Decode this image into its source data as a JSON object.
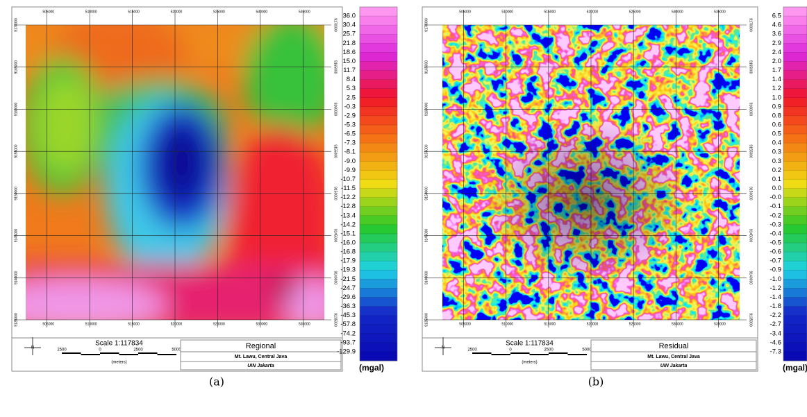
{
  "panels": [
    {
      "caption": "(a)",
      "title": "Regional",
      "location": "Mt. Lawu, Central Java",
      "organization": "UIN Jakarta",
      "scale": "Scale 1:117834",
      "scale_ticks": [
        "2500",
        "0",
        "2500",
        "5000"
      ],
      "scale_unit": "(meters)",
      "north": "N",
      "x_ticks": [
        "505000",
        "510000",
        "515000",
        "520000",
        "525000",
        "530000",
        "535000"
      ],
      "y_ticks": [
        "9170000",
        "9165000",
        "9160000",
        "9155000",
        "9150000",
        "9145000",
        "9140000",
        "9135000"
      ],
      "legend_labels": [
        "36.0",
        "30.4",
        "25.7",
        "21.8",
        "18.6",
        "15.0",
        "11.7",
        "8.4",
        "5.3",
        "2.5",
        "-0.3",
        "-2.9",
        "-5.3",
        "-6.5",
        "-7.3",
        "-8.1",
        "-9.0",
        "-9.9",
        "-10.7",
        "-11.5",
        "-12.2",
        "-12.8",
        "-13.4",
        "-14.2",
        "-15.1",
        "-16.0",
        "-16.8",
        "-17.9",
        "-19.3",
        "-21.5",
        "-24.7",
        "-29.6",
        "-36.3",
        "-45.3",
        "-57.8",
        "-74.2",
        "-93.7",
        "-129.9"
      ],
      "legend_unit": "(mgal)"
    },
    {
      "caption": "(b)",
      "title": "Residual",
      "location": "Mt. Lawu, Central Java",
      "organization": "UIN Jakarta",
      "scale": "Scale 1:117834",
      "scale_ticks": [
        "2500",
        "0",
        "2500",
        "5000"
      ],
      "scale_unit": "(meters)",
      "north": "N",
      "x_ticks": [
        "505000",
        "510000",
        "515000",
        "520000",
        "525000",
        "530000",
        "535000"
      ],
      "y_ticks": [
        "9170000",
        "9165000",
        "9160000",
        "9155000",
        "9150000",
        "9145000",
        "9140000",
        "9135000"
      ],
      "legend_labels": [
        "6.5",
        "4.6",
        "3.6",
        "2.9",
        "2.4",
        "2.0",
        "1.7",
        "1.4",
        "1.2",
        "1.0",
        "0.9",
        "0.8",
        "0.6",
        "0.5",
        "0.4",
        "0.3",
        "0.3",
        "0.2",
        "0.1",
        "0.0",
        "-0.0",
        "-0.1",
        "-0.2",
        "-0.3",
        "-0.4",
        "-0.5",
        "-0.6",
        "-0.7",
        "-0.9",
        "-1.0",
        "-1.2",
        "-1.4",
        "-1.8",
        "-2.2",
        "-2.7",
        "-3.4",
        "-4.6",
        "-7.3"
      ],
      "legend_unit": "(mgal)"
    }
  ]
}
